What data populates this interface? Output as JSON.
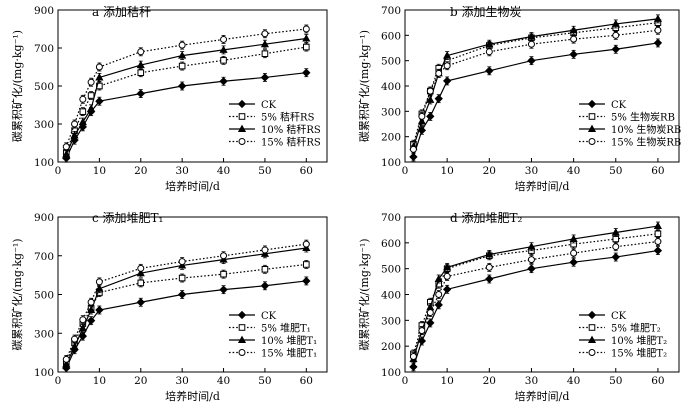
{
  "chart_data": [
    {
      "type": "line",
      "title": "a 添加秸秆",
      "xlabel": "培养时间/d",
      "ylabel": "碳累积矿化/(mg·kg⁻¹)",
      "xlim": [
        0,
        65
      ],
      "ylim": [
        100,
        900
      ],
      "xticks": [
        0,
        10,
        20,
        30,
        40,
        50,
        60
      ],
      "yticks": [
        100,
        300,
        500,
        700,
        900
      ],
      "x": [
        2,
        4,
        6,
        8,
        10,
        20,
        30,
        40,
        50,
        60
      ],
      "legend_position": "bottom-right",
      "series": [
        {
          "name": "CK",
          "marker": "diamond-filled",
          "line": "solid",
          "values": [
            120,
            215,
            285,
            365,
            420,
            460,
            500,
            525,
            545,
            570
          ]
        },
        {
          "name": "5% 秸秆RS",
          "marker": "square-open",
          "line": "dotted",
          "values": [
            150,
            265,
            365,
            450,
            500,
            570,
            605,
            635,
            670,
            705
          ]
        },
        {
          "name": "10% 秸秆RS",
          "marker": "triangle-filled",
          "line": "solid",
          "values": [
            140,
            240,
            310,
            380,
            545,
            610,
            660,
            690,
            720,
            750
          ]
        },
        {
          "name": "15% 秸秆RS",
          "marker": "circle-open",
          "line": "dotted",
          "values": [
            180,
            300,
            430,
            520,
            600,
            680,
            715,
            745,
            775,
            800
          ]
        }
      ]
    },
    {
      "type": "line",
      "title": "b 添加生物炭",
      "xlabel": "培养时间/d",
      "ylabel": "碳累积矿化/(mg·kg⁻¹)",
      "xlim": [
        0,
        65
      ],
      "ylim": [
        100,
        700
      ],
      "xticks": [
        0,
        10,
        20,
        30,
        40,
        50,
        60
      ],
      "yticks": [
        100,
        200,
        300,
        400,
        500,
        600,
        700
      ],
      "x": [
        2,
        4,
        6,
        8,
        10,
        20,
        30,
        40,
        50,
        60
      ],
      "legend_position": "bottom-right",
      "series": [
        {
          "name": "CK",
          "marker": "diamond-filled",
          "line": "solid",
          "values": [
            120,
            225,
            280,
            350,
            420,
            460,
            500,
            525,
            545,
            570
          ]
        },
        {
          "name": "5% 生物炭RB",
          "marker": "square-open",
          "line": "dotted",
          "values": [
            170,
            290,
            380,
            470,
            500,
            560,
            590,
            610,
            630,
            650
          ]
        },
        {
          "name": "10% 生物炭RB",
          "marker": "triangle-filled",
          "line": "solid",
          "values": [
            160,
            260,
            345,
            450,
            520,
            565,
            595,
            620,
            645,
            665
          ]
        },
        {
          "name": "15% 生物炭RB",
          "marker": "circle-open",
          "line": "dotted",
          "values": [
            150,
            280,
            380,
            450,
            480,
            535,
            565,
            585,
            600,
            620
          ]
        }
      ]
    },
    {
      "type": "line",
      "title": "c 添加堆肥T₁",
      "xlabel": "培养时间/d",
      "ylabel": "碳累积矿化/(mg·kg⁻¹)",
      "xlim": [
        0,
        65
      ],
      "ylim": [
        100,
        900
      ],
      "xticks": [
        0,
        10,
        20,
        30,
        40,
        50,
        60
      ],
      "yticks": [
        100,
        300,
        500,
        700,
        900
      ],
      "x": [
        2,
        4,
        6,
        8,
        10,
        20,
        30,
        40,
        50,
        60
      ],
      "legend_position": "bottom-right",
      "series": [
        {
          "name": "CK",
          "marker": "diamond-filled",
          "line": "solid",
          "values": [
            120,
            215,
            285,
            365,
            420,
            460,
            500,
            525,
            545,
            570
          ]
        },
        {
          "name": "5% 堆肥T₁",
          "marker": "square-open",
          "line": "dotted",
          "values": [
            150,
            250,
            350,
            430,
            510,
            560,
            585,
            605,
            630,
            655
          ]
        },
        {
          "name": "10% 堆肥T₁",
          "marker": "triangle-filled",
          "line": "solid",
          "values": [
            140,
            230,
            325,
            420,
            530,
            610,
            650,
            680,
            710,
            740
          ]
        },
        {
          "name": "15% 堆肥T₁",
          "marker": "circle-open",
          "line": "dotted",
          "values": [
            165,
            270,
            370,
            460,
            565,
            635,
            670,
            700,
            730,
            760
          ]
        }
      ]
    },
    {
      "type": "line",
      "title": "d 添加堆肥T₂",
      "xlabel": "培养时间/d",
      "ylabel": "碳累积矿化/(mg·kg⁻¹)",
      "xlim": [
        0,
        65
      ],
      "ylim": [
        100,
        700
      ],
      "xticks": [
        0,
        10,
        20,
        30,
        40,
        50,
        60
      ],
      "yticks": [
        100,
        200,
        300,
        400,
        500,
        600,
        700
      ],
      "x": [
        2,
        4,
        6,
        8,
        10,
        20,
        30,
        40,
        50,
        60
      ],
      "legend_position": "bottom-right",
      "series": [
        {
          "name": "CK",
          "marker": "diamond-filled",
          "line": "solid",
          "values": [
            120,
            220,
            290,
            360,
            420,
            460,
            500,
            525,
            545,
            570
          ]
        },
        {
          "name": "5% 堆肥T₂",
          "marker": "square-open",
          "line": "dotted",
          "values": [
            170,
            280,
            370,
            440,
            500,
            550,
            570,
            595,
            615,
            635
          ]
        },
        {
          "name": "10% 堆肥T₂",
          "marker": "triangle-filled",
          "line": "solid",
          "values": [
            150,
            260,
            350,
            460,
            505,
            555,
            585,
            615,
            640,
            665
          ]
        },
        {
          "name": "15% 堆肥T₂",
          "marker": "circle-open",
          "line": "dotted",
          "values": [
            160,
            260,
            330,
            400,
            470,
            505,
            535,
            560,
            585,
            605
          ]
        }
      ]
    }
  ]
}
